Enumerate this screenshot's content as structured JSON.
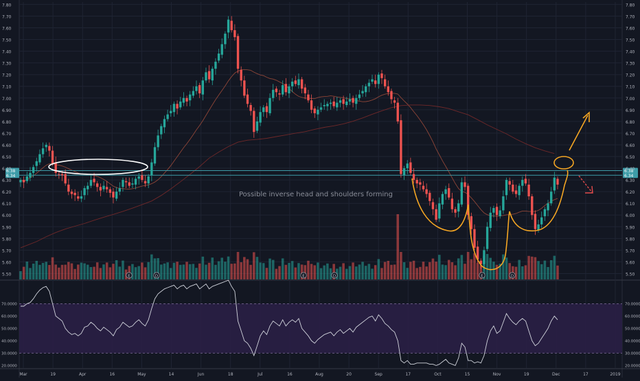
{
  "colors": {
    "background": "#131722",
    "grid": "#1f2433",
    "up": "#26a69a",
    "down": "#ef5350",
    "axis_text": "#b2b5be",
    "annotation_white": "#ffffff",
    "annotation_orange": "#f5a623",
    "arrow_down": "#e24b4b",
    "ma_short": "#9c4a3a",
    "ma_long": "#7a2a2a",
    "level_line": "#3d9ca8",
    "rsi_band": "#2a1f45",
    "rsi_line": "#d1d4dc"
  },
  "annotations": {
    "note": "Possible inverse head and shoulders forming"
  },
  "chart_data": [
    {
      "type": "candlestick",
      "y_ticks": [
        "7.80",
        "7.70",
        "7.60",
        "7.50",
        "7.40",
        "7.30",
        "7.20",
        "7.10",
        "7.00",
        "6.90",
        "6.80",
        "6.70",
        "6.60",
        "6.50",
        "6.40",
        "6.30",
        "6.20",
        "6.10",
        "6.00",
        "5.90",
        "5.80",
        "5.70",
        "5.60",
        "5.50"
      ],
      "x_ticks": [
        "Mar",
        "19",
        "Apr",
        "16",
        "May",
        "14",
        "Jun",
        "18",
        "Jul",
        "16",
        "Aug",
        "20",
        "Sep",
        "17",
        "Oct",
        "15",
        "Nov",
        "19",
        "Dec",
        "17",
        "2019"
      ],
      "price_labels": [
        "6.38",
        "6.34"
      ],
      "ylim": [
        5.45,
        7.82
      ],
      "earnings_markers": [
        "E",
        "D",
        "E",
        "D",
        "E",
        "D"
      ],
      "closes": [
        6.3,
        6.28,
        6.33,
        6.36,
        6.41,
        6.46,
        6.52,
        6.57,
        6.6,
        6.55,
        6.44,
        6.36,
        6.35,
        6.34,
        6.27,
        6.2,
        6.18,
        6.17,
        6.14,
        6.16,
        6.23,
        6.25,
        6.3,
        6.28,
        6.24,
        6.21,
        6.25,
        6.22,
        6.19,
        6.15,
        6.2,
        6.23,
        6.3,
        6.28,
        6.25,
        6.27,
        6.31,
        6.33,
        6.3,
        6.27,
        6.33,
        6.45,
        6.58,
        6.68,
        6.76,
        6.82,
        6.86,
        6.89,
        6.95,
        6.91,
        6.97,
        7.0,
        6.97,
        7.03,
        7.06,
        7.1,
        7.04,
        7.15,
        7.22,
        7.16,
        7.25,
        7.31,
        7.38,
        7.46,
        7.55,
        7.67,
        7.58,
        7.52,
        7.25,
        7.15,
        7.02,
        6.95,
        6.89,
        6.71,
        6.8,
        6.88,
        6.92,
        6.88,
        7.0,
        7.07,
        7.05,
        7.03,
        7.11,
        7.05,
        7.1,
        7.14,
        7.12,
        7.16,
        7.08,
        7.04,
        6.98,
        6.9,
        6.87,
        6.9,
        6.92,
        6.94,
        6.95,
        6.96,
        6.93,
        6.96,
        6.98,
        6.95,
        6.97,
        6.99,
        6.96,
        7.0,
        7.03,
        7.06,
        7.1,
        7.13,
        7.16,
        7.12,
        7.2,
        7.17,
        7.1,
        7.05,
        6.99,
        6.96,
        6.8,
        6.35,
        6.4,
        6.44,
        6.36,
        6.3,
        6.27,
        6.26,
        6.22,
        6.18,
        6.12,
        6.05,
        5.96,
        6.1,
        6.18,
        6.22,
        6.15,
        6.05,
        6.02,
        6.1,
        6.28,
        6.24,
        6.0,
        5.88,
        5.72,
        5.62,
        5.58,
        5.7,
        5.9,
        6.02,
        6.06,
        6.0,
        6.04,
        6.16,
        6.3,
        6.26,
        6.2,
        6.18,
        6.25,
        6.3,
        6.27,
        6.16,
        6.0,
        5.88,
        5.92,
        5.98,
        6.05,
        6.1,
        6.2,
        6.32,
        6.26
      ]
    },
    {
      "type": "line",
      "y_ticks": [
        "70.0000",
        "60.0000",
        "50.0000",
        "40.0000",
        "30.0000",
        "20.0000"
      ],
      "bands": [
        30,
        70
      ],
      "ylim": [
        18,
        88
      ],
      "values": [
        68,
        68,
        70,
        71,
        74,
        78,
        81,
        83,
        84,
        80,
        70,
        60,
        58,
        56,
        50,
        47,
        45,
        46,
        44,
        46,
        51,
        52,
        55,
        53,
        50,
        48,
        51,
        49,
        47,
        44,
        49,
        51,
        55,
        53,
        51,
        52,
        55,
        57,
        54,
        52,
        57,
        66,
        74,
        78,
        80,
        82,
        83,
        84,
        85,
        82,
        84,
        85,
        82,
        84,
        85,
        86,
        82,
        84,
        86,
        82,
        84,
        85,
        86,
        87,
        88,
        89,
        84,
        80,
        56,
        48,
        40,
        38,
        34,
        28,
        36,
        44,
        48,
        45,
        52,
        56,
        54,
        52,
        57,
        52,
        55,
        57,
        55,
        58,
        50,
        47,
        44,
        40,
        38,
        41,
        43,
        45,
        46,
        47,
        44,
        47,
        49,
        46,
        48,
        50,
        47,
        51,
        53,
        55,
        57,
        59,
        60,
        56,
        61,
        58,
        54,
        52,
        49,
        47,
        40,
        24,
        22,
        24,
        21,
        21,
        22,
        22,
        22,
        22,
        21,
        21,
        20,
        21,
        23,
        25,
        22,
        21,
        20,
        26,
        38,
        35,
        24,
        24,
        22,
        23,
        22,
        28,
        40,
        48,
        52,
        46,
        48,
        55,
        62,
        58,
        55,
        53,
        56,
        58,
        56,
        48,
        40,
        36,
        38,
        42,
        46,
        50,
        56,
        60,
        57
      ]
    }
  ]
}
